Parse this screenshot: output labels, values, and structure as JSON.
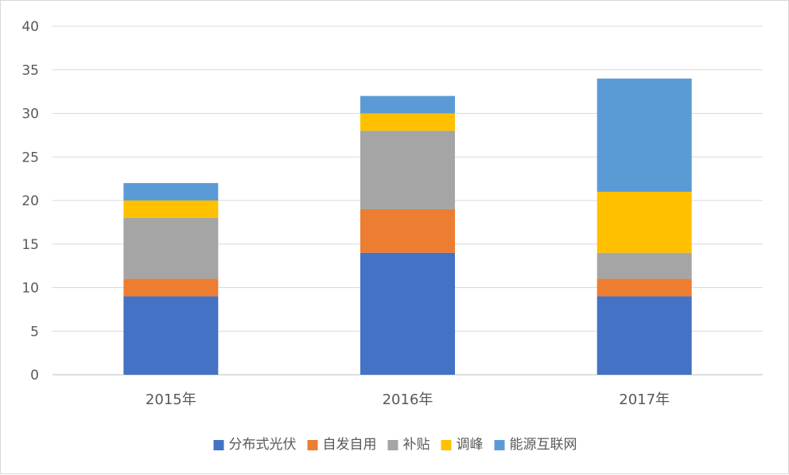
{
  "chart_data": {
    "type": "bar",
    "stacked": true,
    "title": "",
    "xlabel": "",
    "ylabel": "",
    "categories": [
      "2015年",
      "2016年",
      "2017年"
    ],
    "ylim": [
      0,
      40
    ],
    "yticks": [
      0,
      5,
      10,
      15,
      20,
      25,
      30,
      35,
      40
    ],
    "grid": true,
    "legend_position": "bottom",
    "series": [
      {
        "name": "分布式光伏",
        "color": "#4472C4",
        "values": [
          9,
          14,
          9
        ]
      },
      {
        "name": "自发自用",
        "color": "#ED7D31",
        "values": [
          2,
          5,
          2
        ]
      },
      {
        "name": "补贴",
        "color": "#A5A5A5",
        "values": [
          7,
          9,
          3
        ]
      },
      {
        "name": "调峰",
        "color": "#FFC000",
        "values": [
          2,
          2,
          7
        ]
      },
      {
        "name": "能源互联网",
        "color": "#5B9BD5",
        "values": [
          2,
          2,
          13
        ]
      }
    ]
  }
}
